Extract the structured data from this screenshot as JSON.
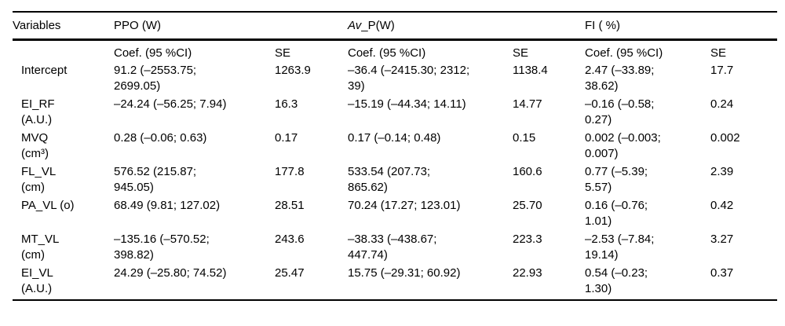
{
  "page": {
    "background_color": "#ffffff",
    "text_color": "#000000",
    "rule_color": "#000000"
  },
  "table": {
    "header": {
      "variables_label": "Variables",
      "groups": {
        "ppo": {
          "label": "PPO (W)"
        },
        "avp": {
          "italic": "Av",
          "rest": "_P(W)"
        },
        "fi": {
          "label": "FI ( %)"
        }
      },
      "subheader": {
        "coef": "Coef. (95 %CI)",
        "se": "SE"
      }
    },
    "rows": [
      {
        "variable": "Intercept",
        "ppo_coef": "91.2 (–2553.75;\n2699.05)",
        "ppo_se": "1263.9",
        "avp_coef": "–36.4 (–2415.30; 2312;\n39)",
        "avp_se": "1138.4",
        "fi_coef": "2.47 (–33.89;\n38.62)",
        "fi_se": "17.7"
      },
      {
        "variable": "EI_RF\n(A.U.)",
        "ppo_coef": "–24.24 (–56.25; 7.94)",
        "ppo_se": "16.3",
        "avp_coef": "–15.19 (–44.34; 14.11)",
        "avp_se": "14.77",
        "fi_coef": "–0.16 (–0.58;\n0.27)",
        "fi_se": "0.24"
      },
      {
        "variable": "MVQ\n(cm³)",
        "ppo_coef": "0.28 (–0.06; 0.63)",
        "ppo_se": "0.17",
        "avp_coef": "0.17 (–0.14; 0.48)",
        "avp_se": "0.15",
        "fi_coef": "0.002 (–0.003;\n0.007)",
        "fi_se": "0.002"
      },
      {
        "variable": "FL_VL\n(cm)",
        "ppo_coef": "576.52 (215.87;\n945.05)",
        "ppo_se": "177.8",
        "avp_coef": "533.54 (207.73;\n865.62)",
        "avp_se": "160.6",
        "fi_coef": "0.77 (–5.39;\n5.57)",
        "fi_se": "2.39"
      },
      {
        "variable": "PA_VL (o)",
        "ppo_coef": "68.49 (9.81; 127.02)",
        "ppo_se": "28.51",
        "avp_coef": "70.24 (17.27; 123.01)",
        "avp_se": "25.70",
        "fi_coef": "0.16 (–0.76;\n1.01)",
        "fi_se": "0.42"
      },
      {
        "variable": "MT_VL\n(cm)",
        "ppo_coef": "–135.16 (–570.52;\n398.82)",
        "ppo_se": "243.6",
        "avp_coef": "–38.33 (–438.67;\n447.74)",
        "avp_se": "223.3",
        "fi_coef": "–2.53 (–7.84;\n19.14)",
        "fi_se": "3.27"
      },
      {
        "variable": "EI_VL\n(A.U.)",
        "ppo_coef": "24.29 (–25.80; 74.52)",
        "ppo_se": "25.47",
        "avp_coef": "15.75 (–29.31; 60.92)",
        "avp_se": "22.93",
        "fi_coef": "0.54 (–0.23;\n1.30)",
        "fi_se": "0.37"
      }
    ]
  }
}
